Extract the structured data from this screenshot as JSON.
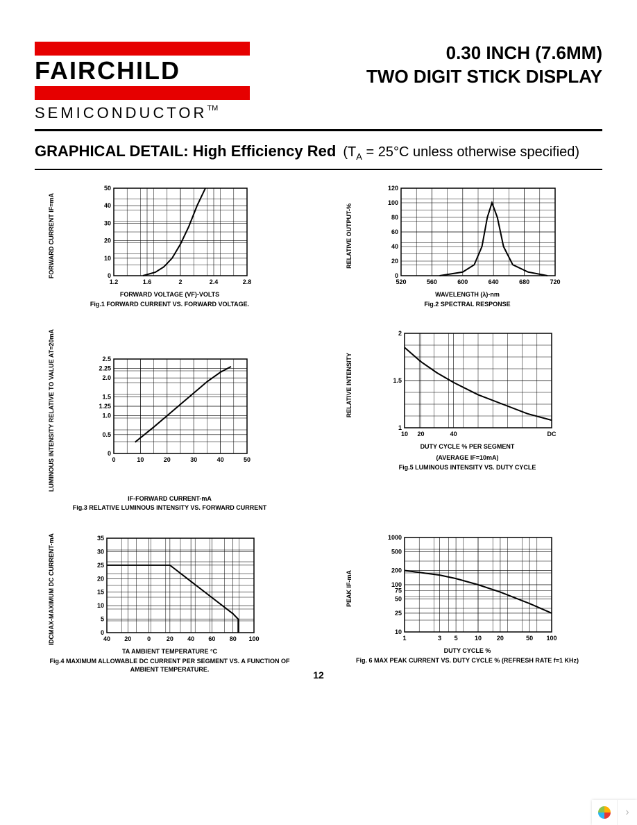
{
  "logo": {
    "brand_top_bar_color": "#e60000",
    "brand_text": "FAIRCHILD",
    "subtext": "SEMICONDUCTOR",
    "tm": "TM"
  },
  "title": {
    "line1": "0.30 INCH (7.6MM)",
    "line2": "TWO  DIGIT STICK DISPLAY"
  },
  "section": {
    "heading": "GRAPHICAL DETAIL: High Efficiency Red",
    "condition_prefix": "(T",
    "condition_sub": "A",
    "condition_rest": " = 25°C unless otherwise specified)"
  },
  "charts": {
    "fig1": {
      "type": "line",
      "ylabel": "FORWARD CURRENT IF=mA",
      "xlabel": "FORWARD VOLTAGE (VF)-VOLTS",
      "caption": "Fig.1 FORWARD CURRENT VS. FORWARD VOLTAGE.",
      "xlim": [
        1.2,
        2.8
      ],
      "xticks": [
        1.2,
        1.6,
        2.0,
        2.4,
        2.8
      ],
      "ylim": [
        0,
        50
      ],
      "yticks": [
        0,
        10,
        20,
        30,
        40,
        50
      ],
      "grid_color": "#000000",
      "line_color": "#000000",
      "line_width": 2,
      "points": [
        [
          1.55,
          0
        ],
        [
          1.7,
          2
        ],
        [
          1.8,
          5
        ],
        [
          1.9,
          10
        ],
        [
          2.0,
          18
        ],
        [
          2.1,
          28
        ],
        [
          2.2,
          40
        ],
        [
          2.3,
          50
        ]
      ]
    },
    "fig2": {
      "type": "line",
      "ylabel": "RELATIVE OUTPUT-%",
      "xlabel": "WAVELENGTH (λ)-nm",
      "caption": "Fig.2 SPECTRAL RESPONSE",
      "xlim": [
        520,
        720
      ],
      "xticks": [
        520,
        560,
        600,
        640,
        680,
        720
      ],
      "ylim": [
        0,
        120
      ],
      "yticks": [
        0,
        20,
        40,
        60,
        80,
        100,
        120
      ],
      "grid_color": "#000000",
      "line_color": "#000000",
      "line_width": 2,
      "points": [
        [
          570,
          0
        ],
        [
          600,
          5
        ],
        [
          615,
          15
        ],
        [
          625,
          40
        ],
        [
          632,
          80
        ],
        [
          638,
          100
        ],
        [
          645,
          80
        ],
        [
          653,
          40
        ],
        [
          665,
          15
        ],
        [
          685,
          5
        ],
        [
          710,
          0
        ]
      ]
    },
    "fig3": {
      "type": "line",
      "ylabel": "LUMINOUS INTENSITY RELATIVE TO VALUE AT=20mA",
      "xlabel": "IF-FORWARD CURRENT-mA",
      "caption": "Fig.3 RELATIVE LUMINOUS INTENSITY VS. FORWARD CURRENT",
      "xlim": [
        0,
        50
      ],
      "xticks": [
        0,
        10,
        20,
        30,
        40,
        50
      ],
      "ylim": [
        0,
        2.5
      ],
      "yticks": [
        0,
        0.5,
        1.0,
        1.25,
        1.5,
        2.0,
        2.25,
        2.5
      ],
      "ytick_labels": [
        "0",
        "0.5",
        "1.0",
        "1.25",
        "1.5",
        "2.0",
        "2.25",
        "2.5"
      ],
      "grid_color": "#000000",
      "line_color": "#000000",
      "line_width": 2,
      "points": [
        [
          8,
          0.3
        ],
        [
          15,
          0.7
        ],
        [
          20,
          1.0
        ],
        [
          25,
          1.3
        ],
        [
          30,
          1.6
        ],
        [
          35,
          1.9
        ],
        [
          40,
          2.15
        ],
        [
          44,
          2.3
        ]
      ]
    },
    "fig5": {
      "type": "line",
      "ylabel": "RELATIVE INTENSITY",
      "xlabel": "DUTY CYCLE % PER SEGMENT",
      "subxlabel": "(AVERAGE  IF=10mA)",
      "caption": "Fig.5 LUMINOUS INTENSITY VS. DUTY CYCLE",
      "xlim": [
        10,
        100
      ],
      "xticks": [
        10,
        20,
        40,
        "DC"
      ],
      "xtick_positions": [
        10,
        20,
        40,
        100
      ],
      "ylim": [
        1,
        2
      ],
      "yticks": [
        1,
        1.5,
        2
      ],
      "grid_color": "#000000",
      "line_color": "#000000",
      "line_width": 2,
      "points": [
        [
          10,
          1.85
        ],
        [
          20,
          1.7
        ],
        [
          30,
          1.58
        ],
        [
          40,
          1.48
        ],
        [
          55,
          1.35
        ],
        [
          70,
          1.25
        ],
        [
          85,
          1.15
        ],
        [
          100,
          1.08
        ]
      ]
    },
    "fig4": {
      "type": "line",
      "ylabel": "IDCMAX-MAXIMUM DC CURRENT-mA",
      "xlabel": "TA AMBIENT TEMPERATURE °C",
      "caption": "Fig.4 MAXIMUM ALLOWABLE DC CURRENT PER SEGMENT VS. A FUNCTION OF AMBIENT TEMPERATURE.",
      "xlim": [
        -40,
        100
      ],
      "xticks_raw": [
        -40,
        -20,
        0,
        20,
        40,
        60,
        80,
        100
      ],
      "xtick_labels": [
        "40",
        "20",
        "0",
        "20",
        "40",
        "60",
        "80",
        "100"
      ],
      "ylim": [
        0,
        35
      ],
      "yticks": [
        0,
        5,
        10,
        15,
        20,
        25,
        30,
        35
      ],
      "grid_color": "#000000",
      "line_color": "#000000",
      "line_width": 2,
      "points": [
        [
          -40,
          25
        ],
        [
          20,
          25
        ],
        [
          40,
          19
        ],
        [
          60,
          13
        ],
        [
          80,
          7
        ],
        [
          85,
          5
        ],
        [
          85,
          0
        ]
      ]
    },
    "fig6": {
      "type": "line",
      "ylabel": "PEAK IF-mA",
      "xlabel": "DUTY CYCLE %",
      "caption": "Fig. 6 MAX PEAK CURRENT VS. DUTY CYCLE % (REFRESH RATE f=1 KHz)",
      "xscale": "log",
      "xlim": [
        1,
        100
      ],
      "xticks": [
        1,
        3,
        5,
        10,
        20,
        50,
        100
      ],
      "yscale": "log",
      "ylim": [
        10,
        1000
      ],
      "yticks": [
        10,
        25,
        50,
        75,
        100,
        200,
        500,
        1000
      ],
      "grid_color": "#000000",
      "line_color": "#000000",
      "line_width": 2,
      "points": [
        [
          1,
          200
        ],
        [
          3,
          160
        ],
        [
          5,
          135
        ],
        [
          10,
          100
        ],
        [
          20,
          70
        ],
        [
          50,
          40
        ],
        [
          100,
          25
        ]
      ]
    }
  },
  "page_number": "12",
  "corner_widget": {
    "icon_colors": [
      "#8bc34a",
      "#ffb300",
      "#e53935",
      "#29b6f6"
    ],
    "arrow": "›"
  }
}
